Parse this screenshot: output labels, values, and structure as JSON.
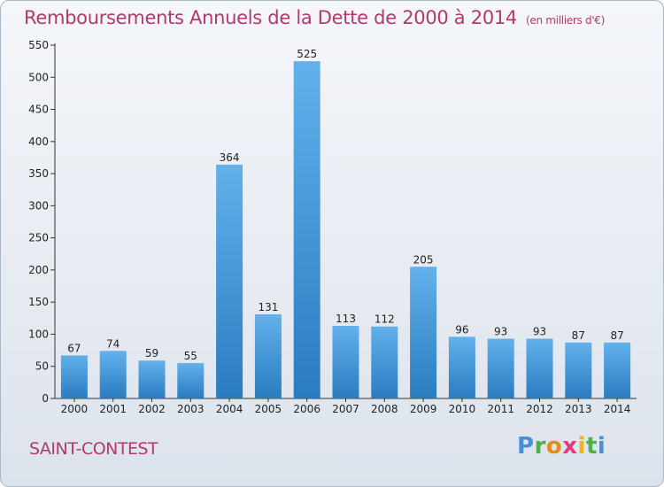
{
  "title": "Remboursements Annuels de la Dette de 2000 à 2014",
  "unit": "(en milliers d'€)",
  "commune": "SAINT-CONTEST",
  "logo": "Proxiti",
  "colors": {
    "title": "#b13a6c",
    "bar_light": "#62b1ec",
    "bar_dark": "#2a7cc0"
  },
  "chart_data": {
    "type": "bar",
    "title": "Remboursements Annuels de la Dette de 2000 à 2014",
    "categories": [
      "2000",
      "2001",
      "2002",
      "2003",
      "2004",
      "2005",
      "2006",
      "2007",
      "2008",
      "2009",
      "2010",
      "2011",
      "2012",
      "2013",
      "2014"
    ],
    "values": [
      67,
      74,
      59,
      55,
      364,
      131,
      525,
      113,
      112,
      205,
      96,
      93,
      93,
      87,
      87
    ],
    "xlabel": "",
    "ylabel": "",
    "ylim": [
      0,
      550
    ],
    "yticks": [
      0,
      50,
      100,
      150,
      200,
      250,
      300,
      350,
      400,
      450,
      500,
      550
    ],
    "grid": false,
    "data_labels": true
  }
}
